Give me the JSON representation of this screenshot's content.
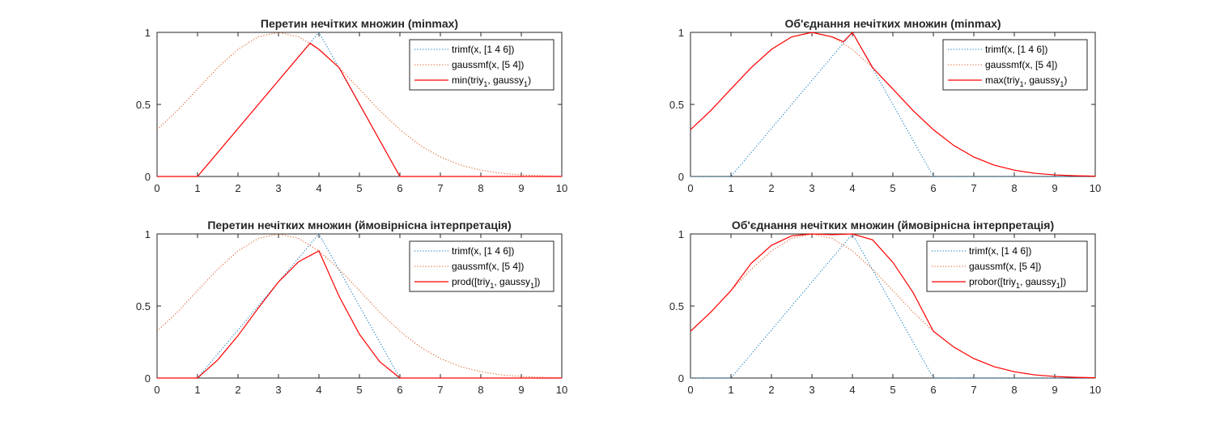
{
  "colors": {
    "trimf": "#0072BD",
    "gaussmf": "#D95319",
    "result": "#FF0000",
    "axis": "#262626"
  },
  "chart_data": [
    {
      "type": "line",
      "title": "Перетин нечітких множин (minmax)",
      "xlim": [
        0,
        10
      ],
      "ylim": [
        0,
        1
      ],
      "xticks": [
        "0",
        "1",
        "2",
        "3",
        "4",
        "5",
        "6",
        "7",
        "8",
        "9",
        "10"
      ],
      "yticks": [
        "0",
        "0.5",
        "1"
      ],
      "legend_position": "top-right",
      "series": [
        {
          "name": "trimf(x, [1 4 6])",
          "style": "dotted",
          "x": [
            0,
            1,
            4,
            6,
            10
          ],
          "y": [
            0,
            0,
            1,
            0,
            0
          ]
        },
        {
          "name": "gaussmf(x, [5 4])",
          "style": "dotted",
          "x": [
            0,
            0.5,
            1,
            1.5,
            2,
            2.5,
            3,
            3.5,
            4,
            4.5,
            5,
            5.5,
            6,
            6.5,
            7,
            7.5,
            8,
            8.5,
            9,
            9.5,
            10
          ],
          "y": [
            0.325,
            0.457,
            0.607,
            0.755,
            0.882,
            0.969,
            1.0,
            0.969,
            0.882,
            0.755,
            0.607,
            0.457,
            0.325,
            0.216,
            0.135,
            0.079,
            0.044,
            0.022,
            0.011,
            0.005,
            0.002
          ]
        },
        {
          "name": "min(triy",
          "name_sub": "1",
          "name_mid": ", gaussy",
          "name_sub2": "1",
          "name_end": ")",
          "style": "solid",
          "x": [
            0,
            1,
            3.78,
            4,
            4.5,
            6,
            10
          ],
          "y": [
            0,
            0,
            0.925,
            0.882,
            0.755,
            0,
            0
          ]
        }
      ]
    },
    {
      "type": "line",
      "title": "Об'єднання нечітких множин (minmax)",
      "xlim": [
        0,
        10
      ],
      "ylim": [
        0,
        1
      ],
      "xticks": [
        "0",
        "1",
        "2",
        "3",
        "4",
        "5",
        "6",
        "7",
        "8",
        "9",
        "10"
      ],
      "yticks": [
        "0",
        "0.5",
        "1"
      ],
      "legend_position": "top-right",
      "series": [
        {
          "name": "trimf(x, [1 4 6])",
          "style": "dotted",
          "x": [
            0,
            1,
            4,
            6,
            10
          ],
          "y": [
            0,
            0,
            1,
            0,
            0
          ]
        },
        {
          "name": "gaussmf(x, [5 4])",
          "style": "dotted",
          "x": [
            0,
            0.5,
            1,
            1.5,
            2,
            2.5,
            3,
            3.5,
            4,
            4.5,
            5,
            5.5,
            6,
            6.5,
            7,
            7.5,
            8,
            8.5,
            9,
            9.5,
            10
          ],
          "y": [
            0.325,
            0.457,
            0.607,
            0.755,
            0.882,
            0.969,
            1.0,
            0.969,
            0.882,
            0.755,
            0.607,
            0.457,
            0.325,
            0.216,
            0.135,
            0.079,
            0.044,
            0.022,
            0.011,
            0.005,
            0.002
          ]
        },
        {
          "name": "max(triy",
          "name_sub": "1",
          "name_mid": ", gaussy",
          "name_sub2": "1",
          "name_end": ")",
          "style": "solid",
          "x": [
            0,
            0.5,
            1,
            1.5,
            2,
            2.5,
            3,
            3.5,
            3.78,
            4,
            4.5,
            5,
            5.5,
            6,
            6.5,
            7,
            7.5,
            8,
            8.5,
            9,
            9.5,
            10
          ],
          "y": [
            0.325,
            0.457,
            0.607,
            0.755,
            0.882,
            0.969,
            1.0,
            0.969,
            0.935,
            1.0,
            0.755,
            0.607,
            0.457,
            0.325,
            0.216,
            0.135,
            0.079,
            0.044,
            0.022,
            0.011,
            0.005,
            0.002
          ]
        }
      ]
    },
    {
      "type": "line",
      "title": "Перетин нечітких множин (ймовірнісна інтерпретація)",
      "xlim": [
        0,
        10
      ],
      "ylim": [
        0,
        1
      ],
      "xticks": [
        "0",
        "1",
        "2",
        "3",
        "4",
        "5",
        "6",
        "7",
        "8",
        "9",
        "10"
      ],
      "yticks": [
        "0",
        "0.5",
        "1"
      ],
      "legend_position": "top-right",
      "series": [
        {
          "name": "trimf(x, [1 4 6])",
          "style": "dotted",
          "x": [
            0,
            1,
            4,
            6,
            10
          ],
          "y": [
            0,
            0,
            1,
            0,
            0
          ]
        },
        {
          "name": "gaussmf(x, [5 4])",
          "style": "dotted",
          "x": [
            0,
            0.5,
            1,
            1.5,
            2,
            2.5,
            3,
            3.5,
            4,
            4.5,
            5,
            5.5,
            6,
            6.5,
            7,
            7.5,
            8,
            8.5,
            9,
            9.5,
            10
          ],
          "y": [
            0.325,
            0.457,
            0.607,
            0.755,
            0.882,
            0.969,
            1.0,
            0.969,
            0.882,
            0.755,
            0.607,
            0.457,
            0.325,
            0.216,
            0.135,
            0.079,
            0.044,
            0.022,
            0.011,
            0.005,
            0.002
          ]
        },
        {
          "name": "prod([triy",
          "name_sub": "1",
          "name_mid": ", gaussy",
          "name_sub2": "1",
          "name_end": "])",
          "style": "solid",
          "x": [
            0,
            1,
            1.5,
            2,
            2.5,
            3,
            3.5,
            4,
            4.5,
            5,
            5.5,
            6,
            10
          ],
          "y": [
            0,
            0,
            0.126,
            0.294,
            0.485,
            0.667,
            0.808,
            0.882,
            0.566,
            0.304,
            0.114,
            0,
            0
          ]
        }
      ]
    },
    {
      "type": "line",
      "title": "Об'єднання нечітких множин (ймовірнісна інтерпретація)",
      "xlim": [
        0,
        10
      ],
      "ylim": [
        0,
        1
      ],
      "xticks": [
        "0",
        "1",
        "2",
        "3",
        "4",
        "5",
        "6",
        "7",
        "8",
        "9",
        "10"
      ],
      "yticks": [
        "0",
        "0.5",
        "1"
      ],
      "legend_position": "top-right",
      "series": [
        {
          "name": "trimf(x, [1 4 6])",
          "style": "dotted",
          "x": [
            0,
            1,
            4,
            6,
            10
          ],
          "y": [
            0,
            0,
            1,
            0,
            0
          ]
        },
        {
          "name": "gaussmf(x, [5 4])",
          "style": "dotted",
          "x": [
            0,
            0.5,
            1,
            1.5,
            2,
            2.5,
            3,
            3.5,
            4,
            4.5,
            5,
            5.5,
            6,
            6.5,
            7,
            7.5,
            8,
            8.5,
            9,
            9.5,
            10
          ],
          "y": [
            0.325,
            0.457,
            0.607,
            0.755,
            0.882,
            0.969,
            1.0,
            0.969,
            0.882,
            0.755,
            0.607,
            0.457,
            0.325,
            0.216,
            0.135,
            0.079,
            0.044,
            0.022,
            0.011,
            0.005,
            0.002
          ]
        },
        {
          "name": "probor([triy",
          "name_sub": "1",
          "name_mid": ", gaussy",
          "name_sub2": "1",
          "name_end": "])",
          "style": "solid",
          "x": [
            0,
            0.5,
            1,
            1.5,
            2,
            2.5,
            3,
            3.5,
            4,
            4.5,
            5,
            5.5,
            6,
            6.5,
            7,
            7.5,
            8,
            8.5,
            9,
            9.5,
            10
          ],
          "y": [
            0.325,
            0.457,
            0.607,
            0.796,
            0.921,
            0.987,
            1.0,
            0.995,
            1.0,
            0.959,
            0.803,
            0.593,
            0.325,
            0.216,
            0.135,
            0.079,
            0.044,
            0.022,
            0.011,
            0.005,
            0.002
          ]
        }
      ]
    }
  ]
}
